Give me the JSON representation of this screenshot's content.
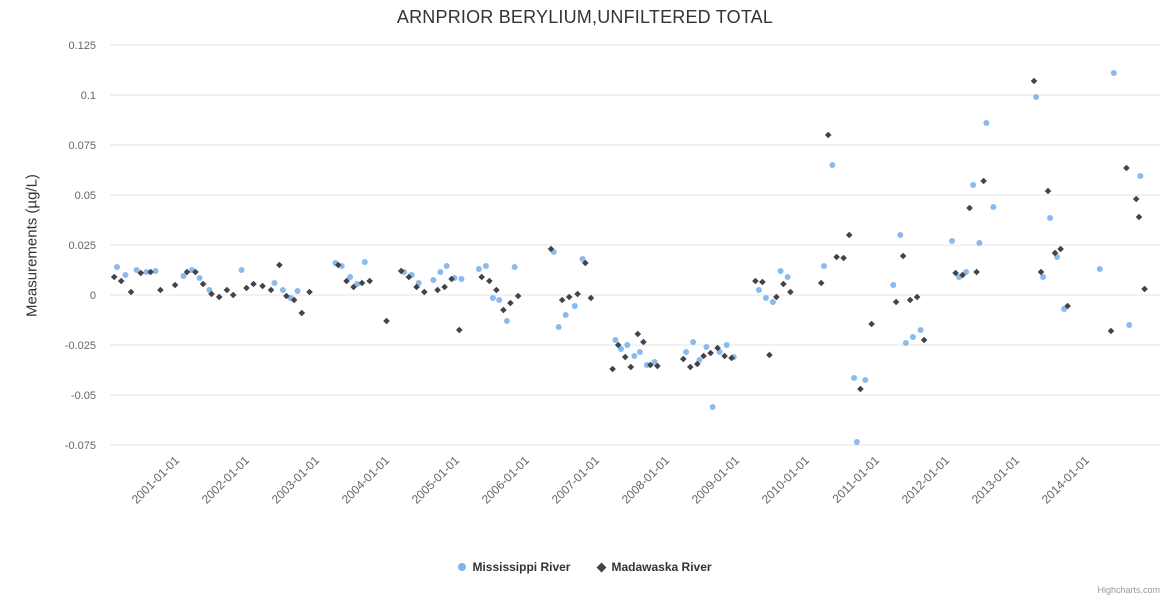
{
  "title": "ARNPRIOR BERYLIUM,UNFILTERED TOTAL",
  "credits": "Highcharts.com",
  "chart_data": {
    "type": "scatter",
    "title": "ARNPRIOR BERYLIUM,UNFILTERED TOTAL",
    "xlabel": "",
    "ylabel": "Measurements (µg/L)",
    "xlim": [
      2000,
      2015
    ],
    "ylim": [
      -0.075,
      0.125
    ],
    "grid": "horizontal",
    "legend_position": "bottom-center",
    "yticks": [
      -0.075,
      -0.05,
      -0.025,
      0,
      0.025,
      0.05,
      0.075,
      0.1,
      0.125
    ],
    "ytick_labels": [
      "-0.075",
      "-0.05",
      "-0.025",
      "0",
      "0.025",
      "0.05",
      "0.075",
      "0.1",
      "0.125"
    ],
    "xticks": [
      2001,
      2002,
      2003,
      2004,
      2005,
      2006,
      2007,
      2008,
      2009,
      2010,
      2011,
      2012,
      2013,
      2014
    ],
    "xtick_labels": [
      "2001-01-01",
      "2002-01-01",
      "2003-01-01",
      "2004-01-01",
      "2005-01-01",
      "2006-01-01",
      "2007-01-01",
      "2008-01-01",
      "2009-01-01",
      "2010-01-01",
      "2011-01-01",
      "2012-01-01",
      "2013-01-01",
      "2014-01-01"
    ],
    "series": [
      {
        "name": "Mississippi River",
        "id": "mississippi-river",
        "marker": "circle",
        "color": "#7cb5ec",
        "data": [
          [
            2000.1,
            0.014
          ],
          [
            2000.22,
            0.01
          ],
          [
            2000.38,
            0.0125
          ],
          [
            2000.52,
            0.0115
          ],
          [
            2000.65,
            0.012
          ],
          [
            2001.05,
            0.0095
          ],
          [
            2001.17,
            0.0125
          ],
          [
            2001.28,
            0.0085
          ],
          [
            2001.42,
            0.0025
          ],
          [
            2001.88,
            0.0125
          ],
          [
            2002.35,
            0.006
          ],
          [
            2002.47,
            0.0025
          ],
          [
            2002.58,
            -0.0015
          ],
          [
            2002.68,
            0.002
          ],
          [
            2003.22,
            0.016
          ],
          [
            2003.31,
            0.0145
          ],
          [
            2003.43,
            0.009
          ],
          [
            2003.53,
            0.0055
          ],
          [
            2003.64,
            0.0165
          ],
          [
            2004.2,
            0.0115
          ],
          [
            2004.31,
            0.01
          ],
          [
            2004.41,
            0.006
          ],
          [
            2004.62,
            0.0075
          ],
          [
            2004.72,
            0.0115
          ],
          [
            2004.81,
            0.0145
          ],
          [
            2004.92,
            0.0085
          ],
          [
            2005.02,
            0.008
          ],
          [
            2005.27,
            0.013
          ],
          [
            2005.37,
            0.0145
          ],
          [
            2005.47,
            -0.0015
          ],
          [
            2005.56,
            -0.0025
          ],
          [
            2005.67,
            -0.013
          ],
          [
            2005.78,
            0.014
          ],
          [
            2006.34,
            0.0215
          ],
          [
            2006.41,
            -0.016
          ],
          [
            2006.51,
            -0.01
          ],
          [
            2006.64,
            -0.0055
          ],
          [
            2006.75,
            0.018
          ],
          [
            2007.22,
            -0.0225
          ],
          [
            2007.3,
            -0.027
          ],
          [
            2007.39,
            -0.025
          ],
          [
            2007.49,
            -0.0305
          ],
          [
            2007.57,
            -0.0285
          ],
          [
            2007.67,
            -0.035
          ],
          [
            2007.78,
            -0.0335
          ],
          [
            2008.23,
            -0.0285
          ],
          [
            2008.33,
            -0.0235
          ],
          [
            2008.42,
            -0.0325
          ],
          [
            2008.52,
            -0.026
          ],
          [
            2008.61,
            -0.056
          ],
          [
            2008.71,
            -0.0285
          ],
          [
            2008.81,
            -0.025
          ],
          [
            2008.91,
            -0.031
          ],
          [
            2009.27,
            0.0025
          ],
          [
            2009.37,
            -0.0015
          ],
          [
            2009.47,
            -0.0035
          ],
          [
            2009.58,
            0.012
          ],
          [
            2009.68,
            0.009
          ],
          [
            2010.2,
            0.0145
          ],
          [
            2010.32,
            0.065
          ],
          [
            2010.63,
            -0.0415
          ],
          [
            2010.67,
            -0.0735
          ],
          [
            2010.79,
            -0.0425
          ],
          [
            2011.19,
            0.005
          ],
          [
            2011.29,
            0.03
          ],
          [
            2011.37,
            -0.024
          ],
          [
            2011.47,
            -0.021
          ],
          [
            2011.58,
            -0.0175
          ],
          [
            2012.03,
            0.027
          ],
          [
            2012.13,
            0.009
          ],
          [
            2012.23,
            0.0115
          ],
          [
            2012.33,
            0.055
          ],
          [
            2012.42,
            0.026
          ],
          [
            2012.52,
            0.086
          ],
          [
            2012.62,
            0.044
          ],
          [
            2013.23,
            0.099
          ],
          [
            2013.33,
            0.009
          ],
          [
            2013.43,
            0.0385
          ],
          [
            2013.53,
            0.019
          ],
          [
            2013.63,
            -0.007
          ],
          [
            2014.14,
            0.013
          ],
          [
            2014.34,
            0.111
          ],
          [
            2014.56,
            -0.015
          ],
          [
            2014.72,
            0.0595
          ]
        ]
      },
      {
        "name": "Madawaska River",
        "id": "madawaska-river",
        "marker": "diamond",
        "color": "#434348",
        "data": [
          [
            2000.06,
            0.009
          ],
          [
            2000.16,
            0.007
          ],
          [
            2000.3,
            0.0015
          ],
          [
            2000.44,
            0.011
          ],
          [
            2000.58,
            0.0115
          ],
          [
            2000.72,
            0.0025
          ],
          [
            2000.93,
            0.005
          ],
          [
            2001.1,
            0.0115
          ],
          [
            2001.22,
            0.0115
          ],
          [
            2001.33,
            0.0055
          ],
          [
            2001.45,
            0.0005
          ],
          [
            2001.56,
            -0.001
          ],
          [
            2001.67,
            0.0025
          ],
          [
            2001.76,
            0.0
          ],
          [
            2001.95,
            0.0035
          ],
          [
            2002.05,
            0.0055
          ],
          [
            2002.18,
            0.0045
          ],
          [
            2002.3,
            0.0025
          ],
          [
            2002.42,
            0.015
          ],
          [
            2002.52,
            -0.0005
          ],
          [
            2002.63,
            -0.0025
          ],
          [
            2002.74,
            -0.009
          ],
          [
            2002.85,
            0.0015
          ],
          [
            2003.26,
            0.015
          ],
          [
            2003.38,
            0.007
          ],
          [
            2003.48,
            0.004
          ],
          [
            2003.6,
            0.006
          ],
          [
            2003.71,
            0.007
          ],
          [
            2003.95,
            -0.013
          ],
          [
            2004.16,
            0.012
          ],
          [
            2004.27,
            0.009
          ],
          [
            2004.38,
            0.004
          ],
          [
            2004.49,
            0.0015
          ],
          [
            2004.68,
            0.0025
          ],
          [
            2004.78,
            0.004
          ],
          [
            2004.88,
            0.008
          ],
          [
            2004.99,
            -0.0175
          ],
          [
            2005.31,
            0.009
          ],
          [
            2005.42,
            0.007
          ],
          [
            2005.52,
            0.0025
          ],
          [
            2005.62,
            -0.0075
          ],
          [
            2005.72,
            -0.004
          ],
          [
            2005.83,
            -0.0005
          ],
          [
            2006.3,
            0.023
          ],
          [
            2006.46,
            -0.0025
          ],
          [
            2006.56,
            -0.001
          ],
          [
            2006.68,
            0.0005
          ],
          [
            2006.79,
            0.016
          ],
          [
            2006.87,
            -0.0015
          ],
          [
            2007.18,
            -0.037
          ],
          [
            2007.26,
            -0.025
          ],
          [
            2007.36,
            -0.031
          ],
          [
            2007.44,
            -0.036
          ],
          [
            2007.54,
            -0.0195
          ],
          [
            2007.62,
            -0.0235
          ],
          [
            2007.72,
            -0.035
          ],
          [
            2007.82,
            -0.0355
          ],
          [
            2008.19,
            -0.032
          ],
          [
            2008.29,
            -0.036
          ],
          [
            2008.39,
            -0.0345
          ],
          [
            2008.48,
            -0.0305
          ],
          [
            2008.58,
            -0.029
          ],
          [
            2008.68,
            -0.0265
          ],
          [
            2008.78,
            -0.0305
          ],
          [
            2008.88,
            -0.0315
          ],
          [
            2009.22,
            0.007
          ],
          [
            2009.32,
            0.0065
          ],
          [
            2009.42,
            -0.03
          ],
          [
            2009.52,
            -0.001
          ],
          [
            2009.62,
            0.0055
          ],
          [
            2009.72,
            0.0015
          ],
          [
            2010.16,
            0.006
          ],
          [
            2010.26,
            0.08
          ],
          [
            2010.38,
            0.019
          ],
          [
            2010.48,
            0.0185
          ],
          [
            2010.56,
            0.03
          ],
          [
            2010.72,
            -0.047
          ],
          [
            2010.88,
            -0.0145
          ],
          [
            2011.23,
            -0.0035
          ],
          [
            2011.33,
            0.0195
          ],
          [
            2011.43,
            -0.0025
          ],
          [
            2011.53,
            -0.001
          ],
          [
            2011.63,
            -0.0225
          ],
          [
            2012.08,
            0.011
          ],
          [
            2012.18,
            0.01
          ],
          [
            2012.28,
            0.0435
          ],
          [
            2012.38,
            0.0115
          ],
          [
            2012.48,
            0.057
          ],
          [
            2013.2,
            0.107
          ],
          [
            2013.3,
            0.0115
          ],
          [
            2013.4,
            0.052
          ],
          [
            2013.5,
            0.021
          ],
          [
            2013.58,
            0.023
          ],
          [
            2013.68,
            -0.0055
          ],
          [
            2014.3,
            -0.018
          ],
          [
            2014.52,
            0.0635
          ],
          [
            2014.66,
            0.048
          ],
          [
            2014.7,
            0.039
          ],
          [
            2014.78,
            0.003
          ]
        ]
      }
    ]
  }
}
